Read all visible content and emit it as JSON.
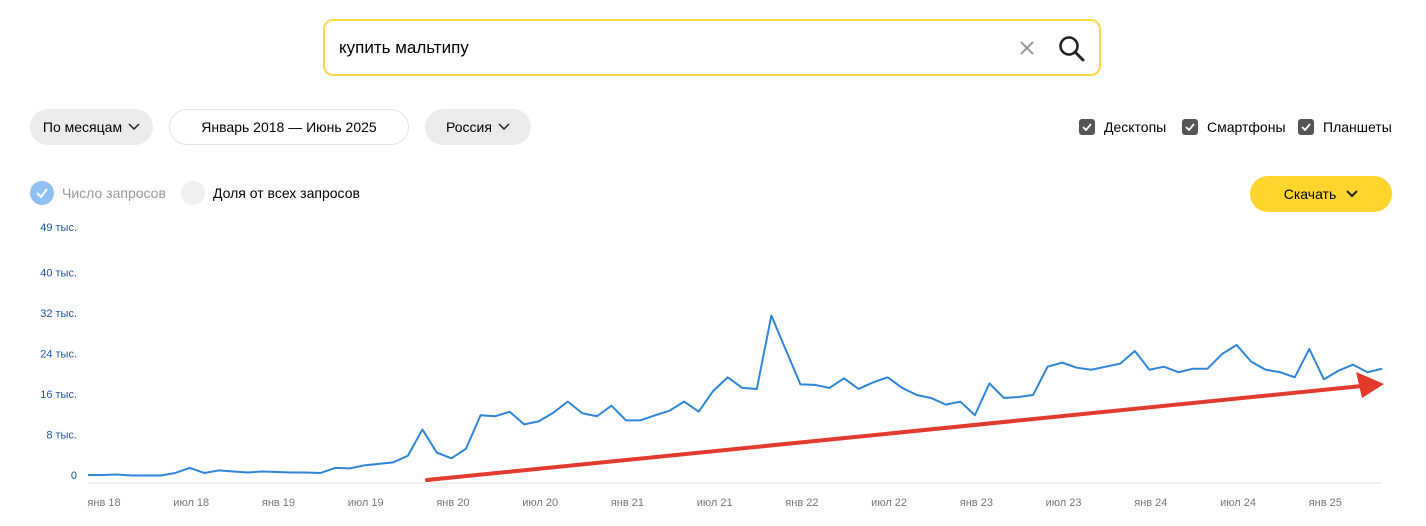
{
  "search": {
    "query": "купить мальтипу"
  },
  "filters": {
    "period": "По месяцам",
    "range": "Январь 2018 — Июнь 2025",
    "region": "Россия"
  },
  "devices": [
    "Десктопы",
    "Смартфоны",
    "Планшеты"
  ],
  "modes": [
    "Число запросов",
    "Доля от всех запросов"
  ],
  "download": "Скачать",
  "chart_data": {
    "type": "line",
    "color": "#2f86dc",
    "grid": false,
    "categories": [
      "янв 18",
      null,
      null,
      null,
      null,
      null,
      "июл 18",
      null,
      null,
      null,
      null,
      null,
      "янв 19",
      null,
      null,
      null,
      null,
      null,
      "июл 19",
      null,
      null,
      null,
      null,
      null,
      "янв 20",
      null,
      null,
      null,
      null,
      null,
      "июл 20",
      null,
      null,
      null,
      null,
      null,
      "янв 21",
      null,
      null,
      null,
      null,
      null,
      "июл 21",
      null,
      null,
      null,
      null,
      null,
      "янв 22",
      null,
      null,
      null,
      null,
      null,
      "июл 22",
      null,
      null,
      null,
      null,
      null,
      "янв 23",
      null,
      null,
      null,
      null,
      null,
      "июл 23",
      null,
      null,
      null,
      null,
      null,
      "янв 24",
      null,
      null,
      null,
      null,
      null,
      "июл 24",
      null,
      null,
      null,
      null,
      null,
      "янв 25",
      null,
      null,
      null,
      null,
      null
    ],
    "values": [
      200,
      200,
      300,
      100,
      100,
      100,
      600,
      1600,
      600,
      1100,
      900,
      700,
      900,
      800,
      700,
      700,
      600,
      1600,
      1500,
      2100,
      2400,
      2700,
      4000,
      9200,
      4600,
      3500,
      5400,
      12000,
      11800,
      12700,
      10200,
      10800,
      12500,
      14700,
      12400,
      11800,
      13900,
      11000,
      11000,
      12000,
      12900,
      14700,
      12700,
      16800,
      19500,
      17400,
      17200,
      31700,
      24900,
      18100,
      18000,
      17400,
      19300,
      17200,
      18500,
      19500,
      17400,
      16000,
      15400,
      14100,
      14700,
      12000,
      18300,
      15400,
      15600,
      16000,
      21600,
      22400,
      21400,
      21000,
      21600,
      22200,
      24700,
      21000,
      21600,
      20500,
      21200,
      21200,
      24100,
      25900,
      22600,
      21000,
      20500,
      19500,
      25100,
      19100,
      20800,
      22000,
      20500,
      21200
    ],
    "ylim": [
      0,
      49000
    ],
    "yticks": [
      0,
      {
        "value": 8000,
        "label": "8 тыс."
      },
      {
        "value": 16000,
        "label": "16 тыс."
      },
      {
        "value": 24000,
        "label": "24 тыс."
      },
      {
        "value": 32000,
        "label": "32 тыс."
      },
      {
        "value": 40000,
        "label": "40 тыс."
      },
      {
        "value": 49000,
        "label": "49 тыс."
      }
    ]
  }
}
